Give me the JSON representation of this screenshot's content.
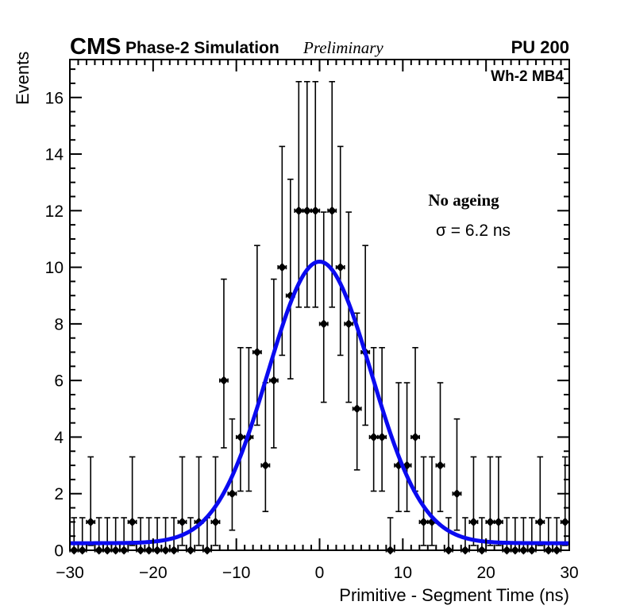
{
  "header": {
    "experiment": "CMS",
    "phase_label": "Phase-2 Simulation",
    "preliminary_label": "Preliminary",
    "pileup_label": "PU 200"
  },
  "plot": {
    "region_label": "Wh-2 MB4",
    "annotation_title": "No ageing",
    "annotation_sigma": "σ = 6.2 ns"
  },
  "chart_data": {
    "type": "scatter",
    "title": "",
    "xlabel": "Primitive - Segment Time (ns)",
    "ylabel": "Events",
    "xlim": [
      -30,
      30
    ],
    "ylim": [
      0,
      17.34
    ],
    "grid": false,
    "legend_position": "none",
    "x_ticks": [
      -30,
      -20,
      -10,
      0,
      10,
      20,
      30
    ],
    "x_tick_labels": [
      "−30",
      "−20",
      "−10",
      "0",
      "10",
      "20",
      "30"
    ],
    "x_minor_step": 1,
    "y_ticks": [
      0,
      2,
      4,
      6,
      8,
      10,
      12,
      14,
      16
    ],
    "y_minor_step": 0.5,
    "bin_width": 1,
    "x": [
      -29.5,
      -28.5,
      -27.5,
      -26.5,
      -25.5,
      -24.5,
      -23.5,
      -22.5,
      -21.5,
      -20.5,
      -19.5,
      -18.5,
      -17.5,
      -16.5,
      -15.5,
      -14.5,
      -13.5,
      -12.5,
      -11.5,
      -10.5,
      -9.5,
      -8.5,
      -7.5,
      -6.5,
      -5.5,
      -4.5,
      -3.5,
      -2.5,
      -1.5,
      -0.5,
      0.5,
      1.5,
      2.5,
      3.5,
      4.5,
      5.5,
      6.5,
      7.5,
      8.5,
      9.5,
      10.5,
      11.5,
      12.5,
      13.5,
      14.5,
      15.5,
      16.5,
      17.5,
      18.5,
      19.5,
      20.5,
      21.5,
      22.5,
      23.5,
      24.5,
      25.5,
      26.5,
      27.5,
      28.5,
      29.5
    ],
    "values": [
      0,
      0,
      1,
      0,
      0,
      0,
      0,
      1,
      0,
      0,
      0,
      0,
      0,
      1,
      0,
      1,
      0,
      1,
      6,
      2,
      4,
      4,
      7,
      3,
      6,
      10,
      9,
      12,
      12,
      12,
      8,
      12,
      10,
      8,
      5,
      7,
      4,
      4,
      0,
      3,
      3,
      4,
      1,
      1,
      3,
      0,
      2,
      0,
      1,
      0,
      1,
      1,
      0,
      0,
      0,
      0,
      1,
      0,
      0,
      1
    ],
    "error_model": "poisson-68pct-asymmetric",
    "error_intervals": {
      "0": [
        0,
        1.15
      ],
      "1": [
        0.17,
        3.3
      ],
      "2": [
        0.71,
        4.64
      ],
      "3": [
        1.37,
        5.92
      ],
      "4": [
        2.09,
        7.16
      ],
      "5": [
        2.84,
        8.38
      ],
      "6": [
        3.62,
        9.58
      ],
      "7": [
        4.42,
        10.77
      ],
      "8": [
        5.23,
        11.95
      ],
      "9": [
        6.06,
        13.11
      ],
      "10": [
        6.89,
        14.27
      ],
      "11": [
        7.73,
        15.41
      ],
      "12": [
        8.59,
        16.56
      ]
    },
    "marker": {
      "shape": "diamond",
      "color": "#000000",
      "size": 11
    },
    "fit": {
      "type": "gaussian-plus-constant",
      "amplitude": 9.95,
      "mean": 0,
      "sigma": 6.2,
      "baseline": 0.25,
      "color": "#0a0af0",
      "line_width": 5
    }
  }
}
